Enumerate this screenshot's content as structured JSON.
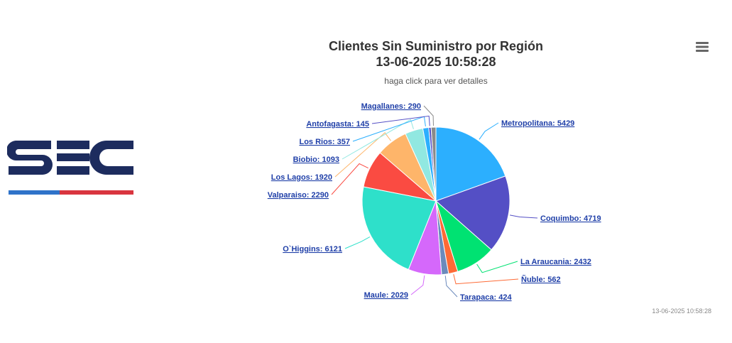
{
  "logo_text": "SEC",
  "header": {
    "title": "Clientes Sin Suministro por Región",
    "datetime": "13-06-2025 10:58:28",
    "subtitle": "haga click para ver detalles"
  },
  "footer": {
    "timestamp": "13-06-2025 10:58:28"
  },
  "menu_icon": "hamburger-menu-icon",
  "colors": {
    "logo_navy": "#1d2c5e",
    "logo_blue": "#2f73c9",
    "logo_red": "#d9353f"
  },
  "chart_data": {
    "type": "pie",
    "title": "Clientes Sin Suministro por Región",
    "subtitle": "haga click para ver detalles",
    "legend": "none",
    "slices": [
      {
        "name": "Metropolitana",
        "value": 5429,
        "label": "Metropolitana: 5429",
        "color": "#2caffe"
      },
      {
        "name": "Coquimbo",
        "value": 4719,
        "label": "Coquimbo: 4719",
        "color": "#544fc5"
      },
      {
        "name": "La Araucania",
        "value": 2432,
        "label": "La Araucania: 2432",
        "color": "#00e272"
      },
      {
        "name": "Ñuble",
        "value": 562,
        "label": "Ñuble: 562",
        "color": "#fe6a35"
      },
      {
        "name": "Tarapaca",
        "value": 424,
        "label": "Tarapaca: 424",
        "color": "#6b8abc"
      },
      {
        "name": "Maule",
        "value": 2029,
        "label": "Maule: 2029",
        "color": "#d568fb"
      },
      {
        "name": "O`Higgins",
        "value": 6121,
        "label": "O`Higgins: 6121",
        "color": "#2ee0ca"
      },
      {
        "name": "Valparaiso",
        "value": 2290,
        "label": "Valparaiso: 2290",
        "color": "#fa4b42"
      },
      {
        "name": "Los Lagos",
        "value": 1920,
        "label": "Los Lagos: 1920",
        "color": "#feb56a"
      },
      {
        "name": "Biobio",
        "value": 1093,
        "label": "Biobio: 1093",
        "color": "#91e8e1"
      },
      {
        "name": "Los Rios",
        "value": 357,
        "label": "Los Rios: 357",
        "color": "#2caffe"
      },
      {
        "name": "Antofagasta",
        "value": 145,
        "label": "Antofagasta: 145",
        "color": "#544fc5"
      },
      {
        "name": "Magallanes",
        "value": 290,
        "label": "Magallanes: 290",
        "color": "#8a8a8a"
      }
    ]
  }
}
